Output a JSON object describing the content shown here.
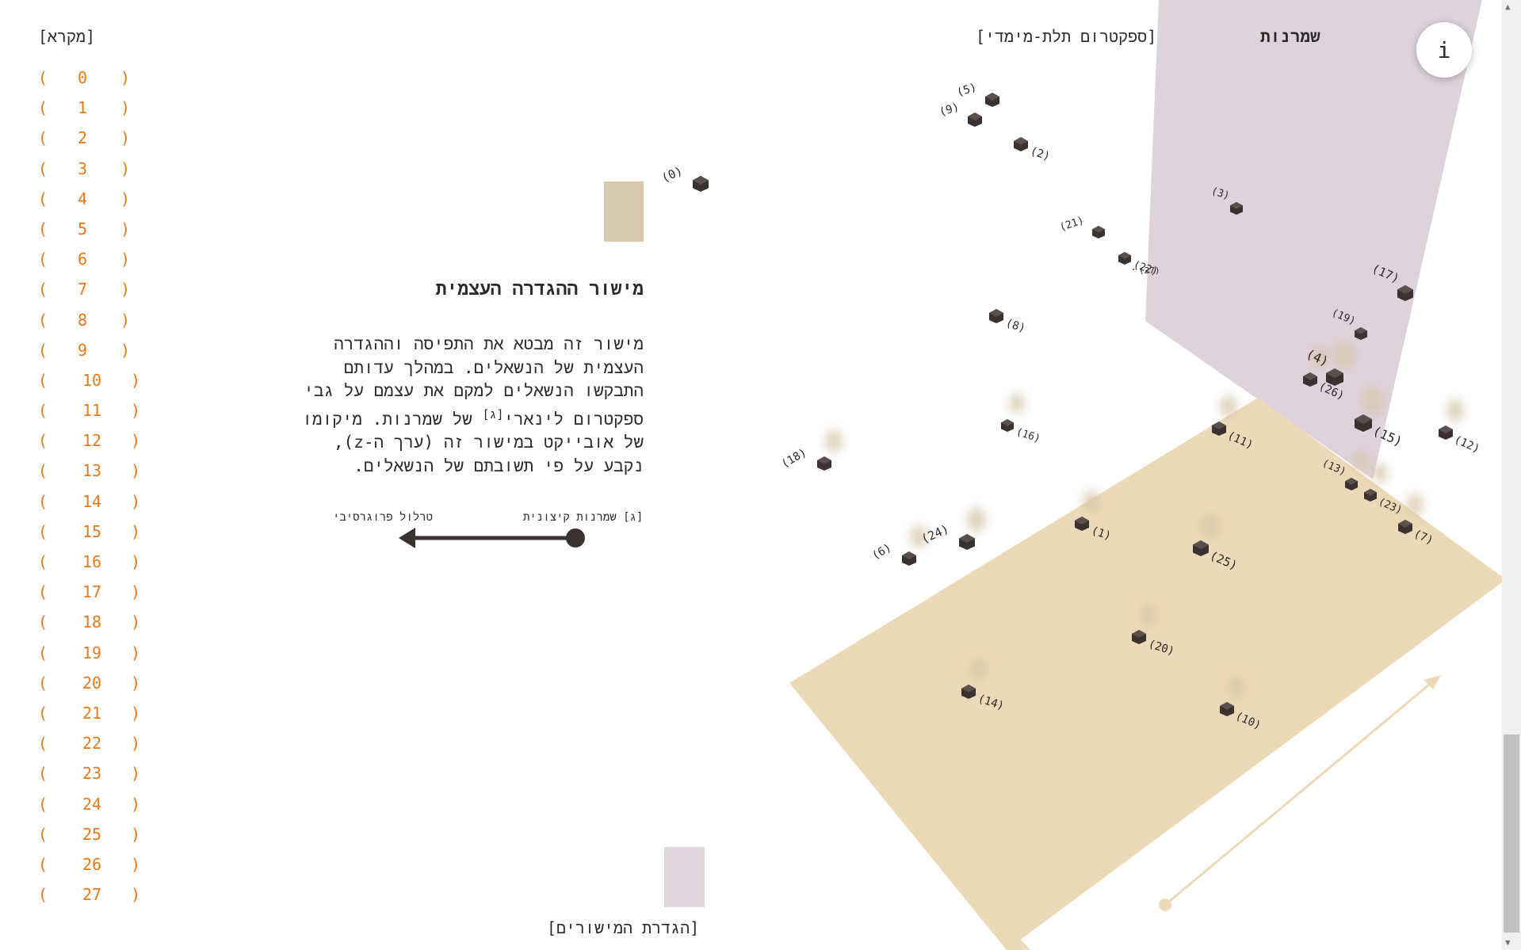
{
  "header": {
    "title": "שמרנות",
    "nav_3d": "[ספקטרום תלת-מימדי]",
    "info_label": "i"
  },
  "legend": {
    "title": "[מקרא]",
    "bracket_left": "(",
    "bracket_right": ")",
    "items": [
      "0",
      "1",
      "2",
      "3",
      "4",
      "5",
      "6",
      "7",
      "8",
      "9",
      "10",
      "11",
      "12",
      "13",
      "14",
      "15",
      "16",
      "17",
      "18",
      "19",
      "20",
      "21",
      "22",
      "23",
      "24",
      "25",
      "26",
      "27"
    ],
    "color": "#e8791a"
  },
  "panel": {
    "title": "מישור ההגדרה העצמית",
    "body_line1": "מישור זה מבטא את התפיסה וההגדרה",
    "body_line2": "העצמית של הנשאלים. במהלך עדותם",
    "body_line3": "התבקשו הנשאלים למקם את עצמם על גבי",
    "body_line4_a": "ספקטרום לינארי",
    "body_line4_sup": "[ג]",
    "body_line4_b": " של שמרנות. מיקומו",
    "body_line5": "של אובייקט במישור זה (ערך ה-z),",
    "body_line6": "נקבע על פי תשובתם של הנשאלים.",
    "axis_extreme": "[ג] שמרנות קיצונית",
    "axis_progressive": "טרלול פרוגרסיבי",
    "planes_link": "[הגדרת המישורים]"
  },
  "points": [
    "0",
    "1",
    "2",
    "3",
    "4",
    "5",
    "6",
    "7",
    "8",
    "9",
    "10",
    "11",
    "12",
    "13",
    "14",
    "15",
    "16",
    "17",
    "18",
    "19",
    "20",
    "21",
    "22",
    "23",
    "24",
    "25",
    "26",
    "27"
  ],
  "colors": {
    "floor_plane": "#ecd9b8",
    "wall_plane": "#ded2dc",
    "cube": "#3a3230",
    "swatch_floor": "#d8c8ad",
    "swatch_wall": "#e0d5de"
  }
}
